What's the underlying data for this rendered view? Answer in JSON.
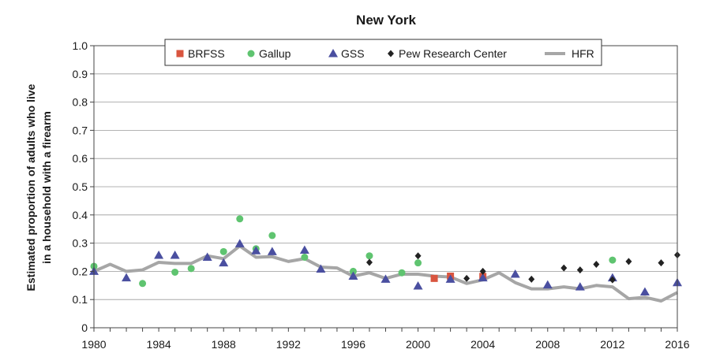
{
  "chart_data": {
    "type": "scatter",
    "title": "New York",
    "ylabel_lines": [
      "Estimated proportion of adults who live",
      "in a household with a firearm"
    ],
    "xlabel": "",
    "xlim": [
      1980,
      2016
    ],
    "ylim": [
      0,
      1
    ],
    "x_ticks": [
      1980,
      1984,
      1988,
      1992,
      1996,
      2000,
      2004,
      2008,
      2012,
      2016
    ],
    "y_ticks": [
      "0",
      "0.1",
      "0.2",
      "0.3",
      "0.4",
      "0.5",
      "0.6",
      "0.7",
      "0.8",
      "0.9",
      "1.0"
    ],
    "grid": true,
    "legend_position": "top",
    "colors": {
      "BRFSS": "#d9553f",
      "Gallup": "#5fc470",
      "GSS": "#4a4fa0",
      "Pew Research Center": "#222222",
      "HFR": "#a6a6a6"
    },
    "series": [
      {
        "name": "BRFSS",
        "marker": "square",
        "points": [
          [
            2001,
            0.175
          ],
          [
            2002,
            0.183
          ],
          [
            2004,
            0.182
          ]
        ]
      },
      {
        "name": "Gallup",
        "marker": "circle",
        "points": [
          [
            1980,
            0.218
          ],
          [
            1983,
            0.157
          ],
          [
            1985,
            0.197
          ],
          [
            1986,
            0.21
          ],
          [
            1988,
            0.27
          ],
          [
            1989,
            0.386
          ],
          [
            1990,
            0.28
          ],
          [
            1991,
            0.327
          ],
          [
            1993,
            0.25
          ],
          [
            1996,
            0.2
          ],
          [
            1997,
            0.255
          ],
          [
            1999,
            0.195
          ],
          [
            2000,
            0.23
          ],
          [
            2012,
            0.24
          ]
        ]
      },
      {
        "name": "GSS",
        "marker": "triangle",
        "points": [
          [
            1980,
            0.2
          ],
          [
            1982,
            0.177
          ],
          [
            1984,
            0.257
          ],
          [
            1985,
            0.257
          ],
          [
            1987,
            0.25
          ],
          [
            1988,
            0.23
          ],
          [
            1989,
            0.298
          ],
          [
            1990,
            0.273
          ],
          [
            1991,
            0.27
          ],
          [
            1993,
            0.275
          ],
          [
            1994,
            0.208
          ],
          [
            1996,
            0.183
          ],
          [
            1998,
            0.172
          ],
          [
            2000,
            0.148
          ],
          [
            2002,
            0.172
          ],
          [
            2004,
            0.177
          ],
          [
            2006,
            0.19
          ],
          [
            2008,
            0.152
          ],
          [
            2010,
            0.145
          ],
          [
            2012,
            0.177
          ],
          [
            2014,
            0.127
          ],
          [
            2016,
            0.16
          ]
        ]
      },
      {
        "name": "Pew Research Center",
        "marker": "diamond",
        "points": [
          [
            1997,
            0.232
          ],
          [
            2000,
            0.255
          ],
          [
            2003,
            0.175
          ],
          [
            2004,
            0.2
          ],
          [
            2007,
            0.172
          ],
          [
            2009,
            0.212
          ],
          [
            2010,
            0.205
          ],
          [
            2011,
            0.225
          ],
          [
            2012,
            0.17
          ],
          [
            2013,
            0.235
          ],
          [
            2015,
            0.23
          ],
          [
            2016,
            0.258
          ]
        ]
      },
      {
        "name": "HFR",
        "marker": "line",
        "points": [
          [
            1980,
            0.2
          ],
          [
            1981,
            0.225
          ],
          [
            1982,
            0.2
          ],
          [
            1983,
            0.205
          ],
          [
            1984,
            0.232
          ],
          [
            1985,
            0.228
          ],
          [
            1986,
            0.228
          ],
          [
            1987,
            0.255
          ],
          [
            1988,
            0.245
          ],
          [
            1989,
            0.29
          ],
          [
            1990,
            0.25
          ],
          [
            1991,
            0.252
          ],
          [
            1992,
            0.235
          ],
          [
            1993,
            0.245
          ],
          [
            1994,
            0.215
          ],
          [
            1995,
            0.212
          ],
          [
            1996,
            0.183
          ],
          [
            1997,
            0.195
          ],
          [
            1998,
            0.175
          ],
          [
            1999,
            0.19
          ],
          [
            2000,
            0.19
          ],
          [
            2001,
            0.183
          ],
          [
            2002,
            0.18
          ],
          [
            2003,
            0.157
          ],
          [
            2004,
            0.17
          ],
          [
            2005,
            0.195
          ],
          [
            2006,
            0.16
          ],
          [
            2007,
            0.138
          ],
          [
            2008,
            0.138
          ],
          [
            2009,
            0.145
          ],
          [
            2010,
            0.138
          ],
          [
            2011,
            0.15
          ],
          [
            2012,
            0.145
          ],
          [
            2013,
            0.103
          ],
          [
            2014,
            0.108
          ],
          [
            2015,
            0.095
          ],
          [
            2016,
            0.125
          ]
        ]
      }
    ]
  }
}
